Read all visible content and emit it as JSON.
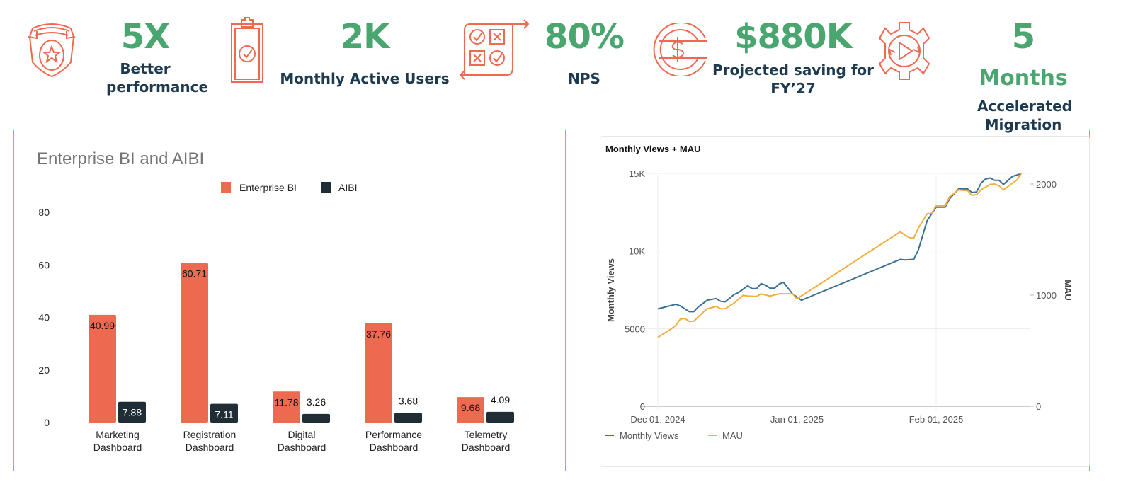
{
  "kpis": [
    {
      "value": "5X",
      "unit": "",
      "label": "Better performance",
      "icon": "police-badge-star-icon"
    },
    {
      "value": "2K",
      "unit": "",
      "label": "Monthly Active Users",
      "icon": "clipboard-check-icon"
    },
    {
      "value": "80%",
      "unit": "",
      "label": "NPS",
      "icon": "check-cross-grid-icon"
    },
    {
      "value": "$880K",
      "unit": "",
      "label": "Projected saving for FY’27",
      "icon": "dollar-coin-icon"
    },
    {
      "value": "5",
      "unit": "Months",
      "label": "Accelerated Migration",
      "icon": "gear-play-icon"
    }
  ],
  "colors": {
    "accent": "#ed6a50",
    "green": "#4aa66f",
    "navy": "#1e3a4f",
    "aibi": "#1f2d36",
    "views": "#3a6f96",
    "mau": "#f0b040"
  },
  "chart_data": [
    {
      "type": "bar",
      "title": "Enterprise BI and AIBI",
      "categories": [
        "Marketing Dashboard",
        "Registration Dashboard",
        "Digital Dashboard",
        "Performance Dashboard",
        "Telemetry Dashboard"
      ],
      "series": [
        {
          "name": "Enterprise BI",
          "color": "#ed6a50",
          "values": [
            40.99,
            60.71,
            11.78,
            37.76,
            9.68
          ]
        },
        {
          "name": "AIBI",
          "color": "#1f2d36",
          "values": [
            7.88,
            7.11,
            3.26,
            3.68,
            4.09
          ]
        }
      ],
      "yticks": [
        "0",
        "20",
        "40",
        "60",
        "80"
      ],
      "ylim": [
        0,
        80
      ],
      "legend": "top",
      "grid": false
    },
    {
      "type": "line",
      "title": "Monthly Views + MAU",
      "ylabel": "Monthly Views",
      "y2label": "MAU",
      "xticks": [
        {
          "date": "2024-12-01",
          "label": "Dec 01, 2024"
        },
        {
          "date": "2025-01-01",
          "label": "Jan 01, 2025"
        },
        {
          "date": "2025-02-01",
          "label": "Feb 01, 2025"
        }
      ],
      "yticks": [
        {
          "v": 0,
          "label": "0"
        },
        {
          "v": 5000,
          "label": "5000"
        },
        {
          "v": 10000,
          "label": "10K"
        },
        {
          "v": 15000,
          "label": "15K"
        }
      ],
      "y2ticks": [
        {
          "v": 0,
          "label": "0"
        },
        {
          "v": 1000,
          "label": "1000"
        },
        {
          "v": 2000,
          "label": "2000"
        }
      ],
      "ylim": [
        0,
        15000
      ],
      "y2lim": [
        0,
        2096
      ],
      "legend": "bottom-left",
      "grid": true,
      "series": [
        {
          "name": "Monthly Views",
          "axis": "left",
          "color": "#3a6f96",
          "points": [
            [
              "2024-12-01",
              6270
            ],
            [
              "2024-12-05",
              6570
            ],
            [
              "2024-12-06",
              6460
            ],
            [
              "2024-12-08",
              6090
            ],
            [
              "2024-12-09",
              6090
            ],
            [
              "2024-12-10",
              6390
            ],
            [
              "2024-12-12",
              6830
            ],
            [
              "2024-12-14",
              6940
            ],
            [
              "2024-12-15",
              6760
            ],
            [
              "2024-12-16",
              6730
            ],
            [
              "2024-12-18",
              7200
            ],
            [
              "2024-12-19",
              7330
            ],
            [
              "2024-12-21",
              7760
            ],
            [
              "2024-12-22",
              7580
            ],
            [
              "2024-12-23",
              7580
            ],
            [
              "2024-12-24",
              7900
            ],
            [
              "2024-12-25",
              7800
            ],
            [
              "2024-12-26",
              7600
            ],
            [
              "2024-12-27",
              7600
            ],
            [
              "2024-12-28",
              7870
            ],
            [
              "2024-12-29",
              7980
            ],
            [
              "2024-12-31",
              7240
            ],
            [
              "2025-01-02",
              6830
            ],
            [
              "2025-01-24",
              9460
            ],
            [
              "2025-01-25",
              9430
            ],
            [
              "2025-01-27",
              9460
            ],
            [
              "2025-01-28",
              10030
            ],
            [
              "2025-01-30",
              11960
            ],
            [
              "2025-02-01",
              12820
            ],
            [
              "2025-02-03",
              12820
            ],
            [
              "2025-02-04",
              13370
            ],
            [
              "2025-02-06",
              14000
            ],
            [
              "2025-02-08",
              14000
            ],
            [
              "2025-02-09",
              13770
            ],
            [
              "2025-02-10",
              13800
            ],
            [
              "2025-02-11",
              14370
            ],
            [
              "2025-02-12",
              14640
            ],
            [
              "2025-02-13",
              14710
            ],
            [
              "2025-02-14",
              14560
            ],
            [
              "2025-02-15",
              14560
            ],
            [
              "2025-02-16",
              14290
            ],
            [
              "2025-02-18",
              14810
            ],
            [
              "2025-02-20",
              14980
            ]
          ]
        },
        {
          "name": "MAU",
          "axis": "right",
          "color": "#f0b040",
          "points": [
            [
              "2024-12-01",
              620
            ],
            [
              "2024-12-04",
              696
            ],
            [
              "2024-12-05",
              728
            ],
            [
              "2024-12-06",
              784
            ],
            [
              "2024-12-07",
              790
            ],
            [
              "2024-12-08",
              763
            ],
            [
              "2024-12-09",
              765
            ],
            [
              "2024-12-11",
              842
            ],
            [
              "2024-12-12",
              877
            ],
            [
              "2024-12-14",
              898
            ],
            [
              "2024-12-15",
              877
            ],
            [
              "2024-12-16",
              877
            ],
            [
              "2024-12-18",
              929
            ],
            [
              "2024-12-20",
              998
            ],
            [
              "2024-12-21",
              992
            ],
            [
              "2024-12-23",
              988
            ],
            [
              "2024-12-24",
              1012
            ],
            [
              "2024-12-26",
              992
            ],
            [
              "2024-12-28",
              1012
            ],
            [
              "2024-12-29",
              1012
            ],
            [
              "2024-12-31",
              1012
            ],
            [
              "2025-01-01",
              967
            ],
            [
              "2025-01-24",
              1570
            ],
            [
              "2025-01-26",
              1518
            ],
            [
              "2025-01-27",
              1513
            ],
            [
              "2025-01-28",
              1601
            ],
            [
              "2025-01-30",
              1732
            ],
            [
              "2025-01-31",
              1736
            ],
            [
              "2025-02-01",
              1805
            ],
            [
              "2025-02-03",
              1805
            ],
            [
              "2025-02-04",
              1886
            ],
            [
              "2025-02-06",
              1948
            ],
            [
              "2025-02-08",
              1940
            ],
            [
              "2025-02-09",
              1898
            ],
            [
              "2025-02-10",
              1906
            ],
            [
              "2025-02-11",
              1948
            ],
            [
              "2025-02-13",
              1996
            ],
            [
              "2025-02-14",
              2000
            ],
            [
              "2025-02-15",
              1985
            ],
            [
              "2025-02-16",
              1948
            ],
            [
              "2025-02-19",
              2037
            ],
            [
              "2025-02-20",
              2096
            ]
          ]
        }
      ]
    }
  ]
}
